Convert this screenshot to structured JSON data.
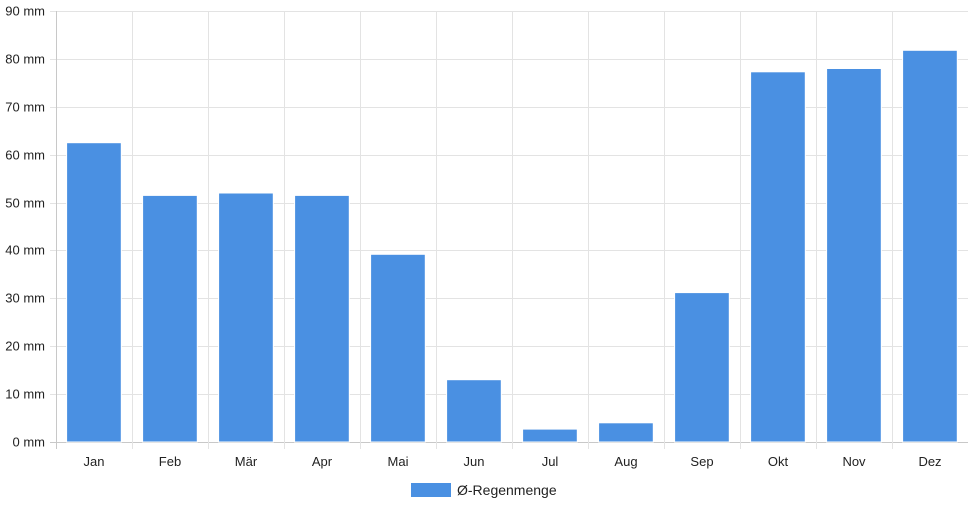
{
  "chart_data": {
    "type": "bar",
    "categories": [
      "Jan",
      "Feb",
      "Mär",
      "Apr",
      "Mai",
      "Jun",
      "Jul",
      "Aug",
      "Sep",
      "Okt",
      "Nov",
      "Dez"
    ],
    "series": [
      {
        "name": "Ø-Regenmenge",
        "color": "#4a90e2",
        "values": [
          62.5,
          51.5,
          52,
          51.5,
          39.2,
          13,
          2.7,
          4,
          31.2,
          77.3,
          78,
          81.8
        ]
      }
    ],
    "y_ticks": [
      "0 mm",
      "10 mm",
      "20 mm",
      "30 mm",
      "40 mm",
      "50 mm",
      "60 mm",
      "70 mm",
      "80 mm",
      "90 mm"
    ],
    "ylim": [
      0,
      90
    ],
    "y_unit": "mm",
    "grid": true,
    "legend_position": "bottom-center"
  }
}
